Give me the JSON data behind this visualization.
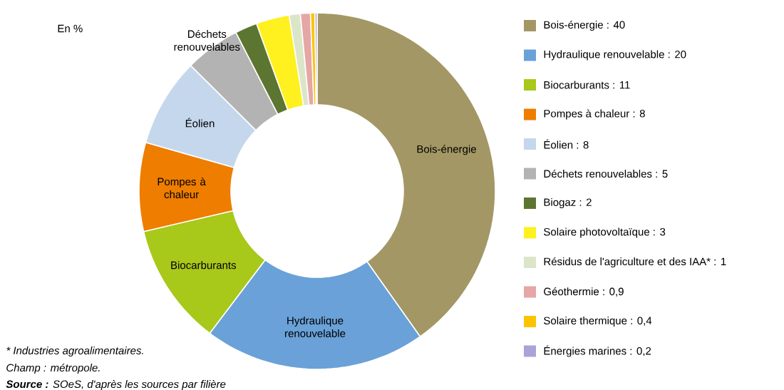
{
  "chart_data": {
    "type": "donut",
    "categories": [
      "Bois-énergie : 40",
      "Hydraulique renouvelable : 20",
      "Biocarburants : 11",
      "Pompes à chaleur : 8",
      "Éolien : 8",
      "Déchets renouvelables : 5",
      "Biogaz : 2",
      "Solaire photovoltaïque : 3",
      "Résidus de l'agriculture et des IAA* : 1",
      "Géothermie : 0,9",
      "Solaire thermique : 0,4",
      "Énergies marines : 0,2"
    ],
    "values": [
      40,
      20,
      11,
      8,
      8,
      5,
      2,
      3,
      1,
      0.9,
      0.4,
      0.2
    ],
    "colors": [
      "#a39765",
      "#6aa1d8",
      "#a8c81a",
      "#ee7d00",
      "#c5d7ec",
      "#b3b3b3",
      "#5c7631",
      "#fff01f",
      "#dbe6c8",
      "#e6a6a6",
      "#fcc400",
      "#a8a4d8"
    ],
    "legend": "right",
    "annotations": [
      "En %",
      {
        "text": "Bois-énergie",
        "x": "Bois-énergie : 40"
      },
      {
        "text": "Hydraulique renouvelable",
        "x": "Hydraulique renouvelable : 20"
      },
      {
        "text": "Biocarburants",
        "x": "Biocarburants : 11"
      },
      {
        "text": "Pompes à chaleur",
        "x": "Pompes à chaleur : 8"
      },
      {
        "text": "Éolien",
        "x": "Éolien : 8"
      },
      {
        "text": "Déchets renouvelables",
        "x": "Déchets renouvelables : 5"
      },
      "* Industries agroalimentaires.",
      "Champ : métropole.",
      "**Source :** SOeS, d'après les sources par filière"
    ]
  }
}
